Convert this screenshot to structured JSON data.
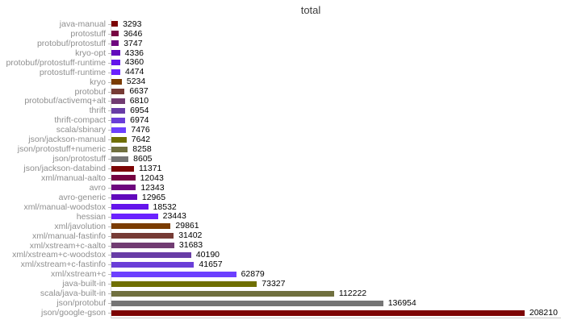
{
  "title": "total",
  "chart_data": {
    "type": "bar",
    "orientation": "horizontal",
    "title": "total",
    "xlabel": "",
    "ylabel": "",
    "xlim": [
      0,
      226500
    ],
    "grid": false,
    "legend": "none",
    "value_labels_shown": true,
    "category_label_color": "#8f8f8f",
    "value_label_color": "#000000",
    "axis_color": "#c8c8c8",
    "categories": [
      "java-manual",
      "protostuff",
      "protobuf/protostuff",
      "kryo-opt",
      "protobuf/protostuff-runtime",
      "protostuff-runtime",
      "kryo",
      "protobuf",
      "protobuf/activemq+alt",
      "thrift",
      "thrift-compact",
      "scala/sbinary",
      "json/jackson-manual",
      "json/protostuff+numeric",
      "json/protostuff",
      "json/jackson-databind",
      "xml/manual-aalto",
      "avro",
      "avro-generic",
      "xml/manual-woodstox",
      "hessian",
      "xml/javolution",
      "xml/manual-fastinfo",
      "xml/xstream+c-aalto",
      "xml/xstream+c-woodstox",
      "xml/xstream+c-fastinfo",
      "xml/xstream+c",
      "java-built-in",
      "scala/java-built-in",
      "json/protobuf",
      "json/google-gson"
    ],
    "values": [
      3293,
      3646,
      3747,
      4336,
      4360,
      4474,
      5234,
      6637,
      6810,
      6954,
      6974,
      7476,
      7642,
      8258,
      8605,
      11371,
      12043,
      12343,
      12965,
      18532,
      23443,
      29861,
      31402,
      31683,
      40190,
      41657,
      62879,
      73327,
      112222,
      136954,
      208210
    ],
    "colors": [
      "#7c0404",
      "#760341",
      "#6e067e",
      "#6109bc",
      "#6414eb",
      "#6a21ff",
      "#7a3b01",
      "#763b35",
      "#713c72",
      "#683da6",
      "#6a3ed8",
      "#6c3fff",
      "#6f6f02",
      "#70703f",
      "#757575",
      "#7c0404",
      "#760341",
      "#6e067e",
      "#6109bc",
      "#6414eb",
      "#6a21ff",
      "#7a3b01",
      "#763b35",
      "#713c72",
      "#683da6",
      "#6a3ed8",
      "#6c3fff",
      "#6f6f02",
      "#70703f",
      "#757575",
      "#7c0404"
    ]
  }
}
